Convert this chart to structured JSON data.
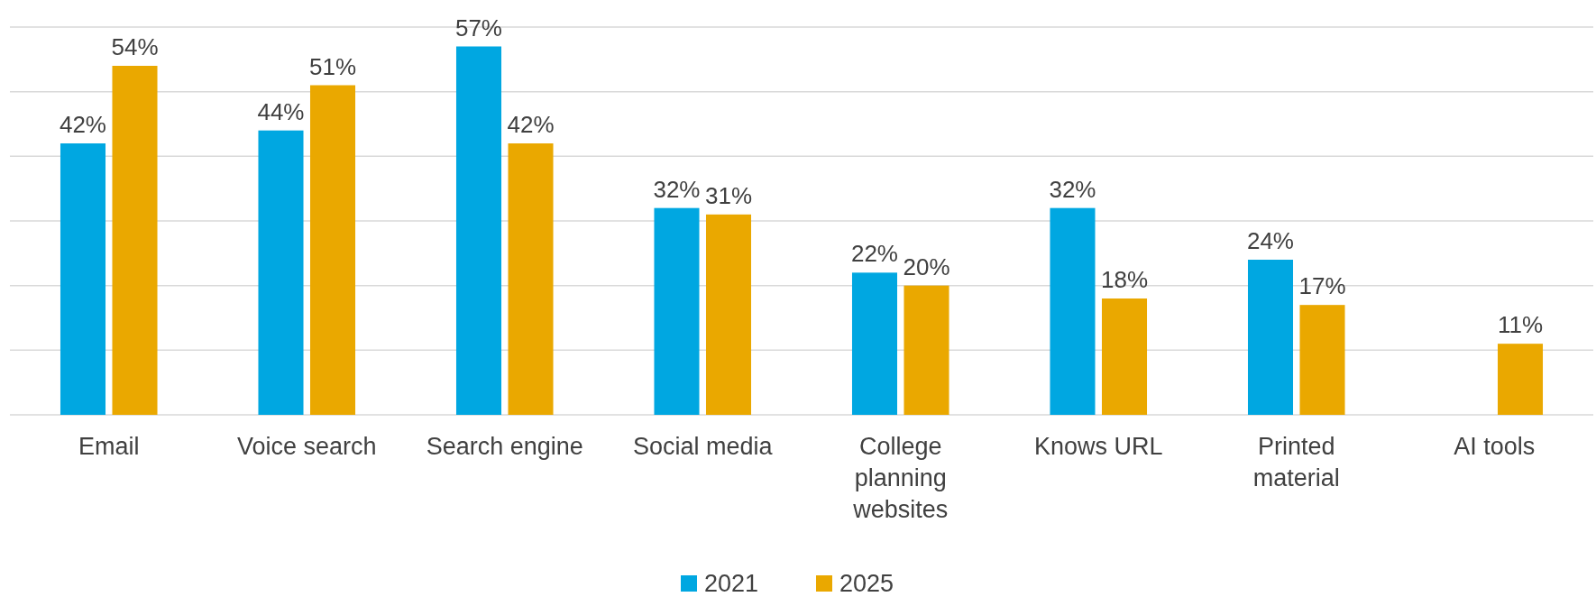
{
  "chart_data": {
    "type": "bar",
    "categories": [
      "Email",
      "Voice search",
      "Search engine",
      "Social media",
      "College planning websites",
      "Knows URL",
      "Printed material",
      "AI tools"
    ],
    "series": [
      {
        "name": "2021",
        "color": "#00a7e1",
        "values": [
          42,
          44,
          57,
          32,
          22,
          32,
          24,
          null
        ],
        "value_labels": [
          "42%",
          "44%",
          "57%",
          "32%",
          "22%",
          "32%",
          "24%",
          null
        ]
      },
      {
        "name": "2025",
        "color": "#eaa800",
        "values": [
          54,
          51,
          42,
          31,
          20,
          18,
          17,
          11
        ],
        "value_labels": [
          "54%",
          "51%",
          "42%",
          "31%",
          "20%",
          "18%",
          "17%",
          "11%"
        ]
      }
    ],
    "ylim": [
      0,
      60
    ],
    "yticks": [
      {
        "value": 0,
        "label": null
      },
      {
        "value": 10,
        "label": null
      },
      {
        "value": 20,
        "label": null
      },
      {
        "value": 30,
        "label": null
      },
      {
        "value": 40,
        "label": null
      },
      {
        "value": 50,
        "label": null
      },
      {
        "value": 60,
        "label": null
      }
    ],
    "tick_labels": "x",
    "grid": "y",
    "legend": "bottom"
  }
}
